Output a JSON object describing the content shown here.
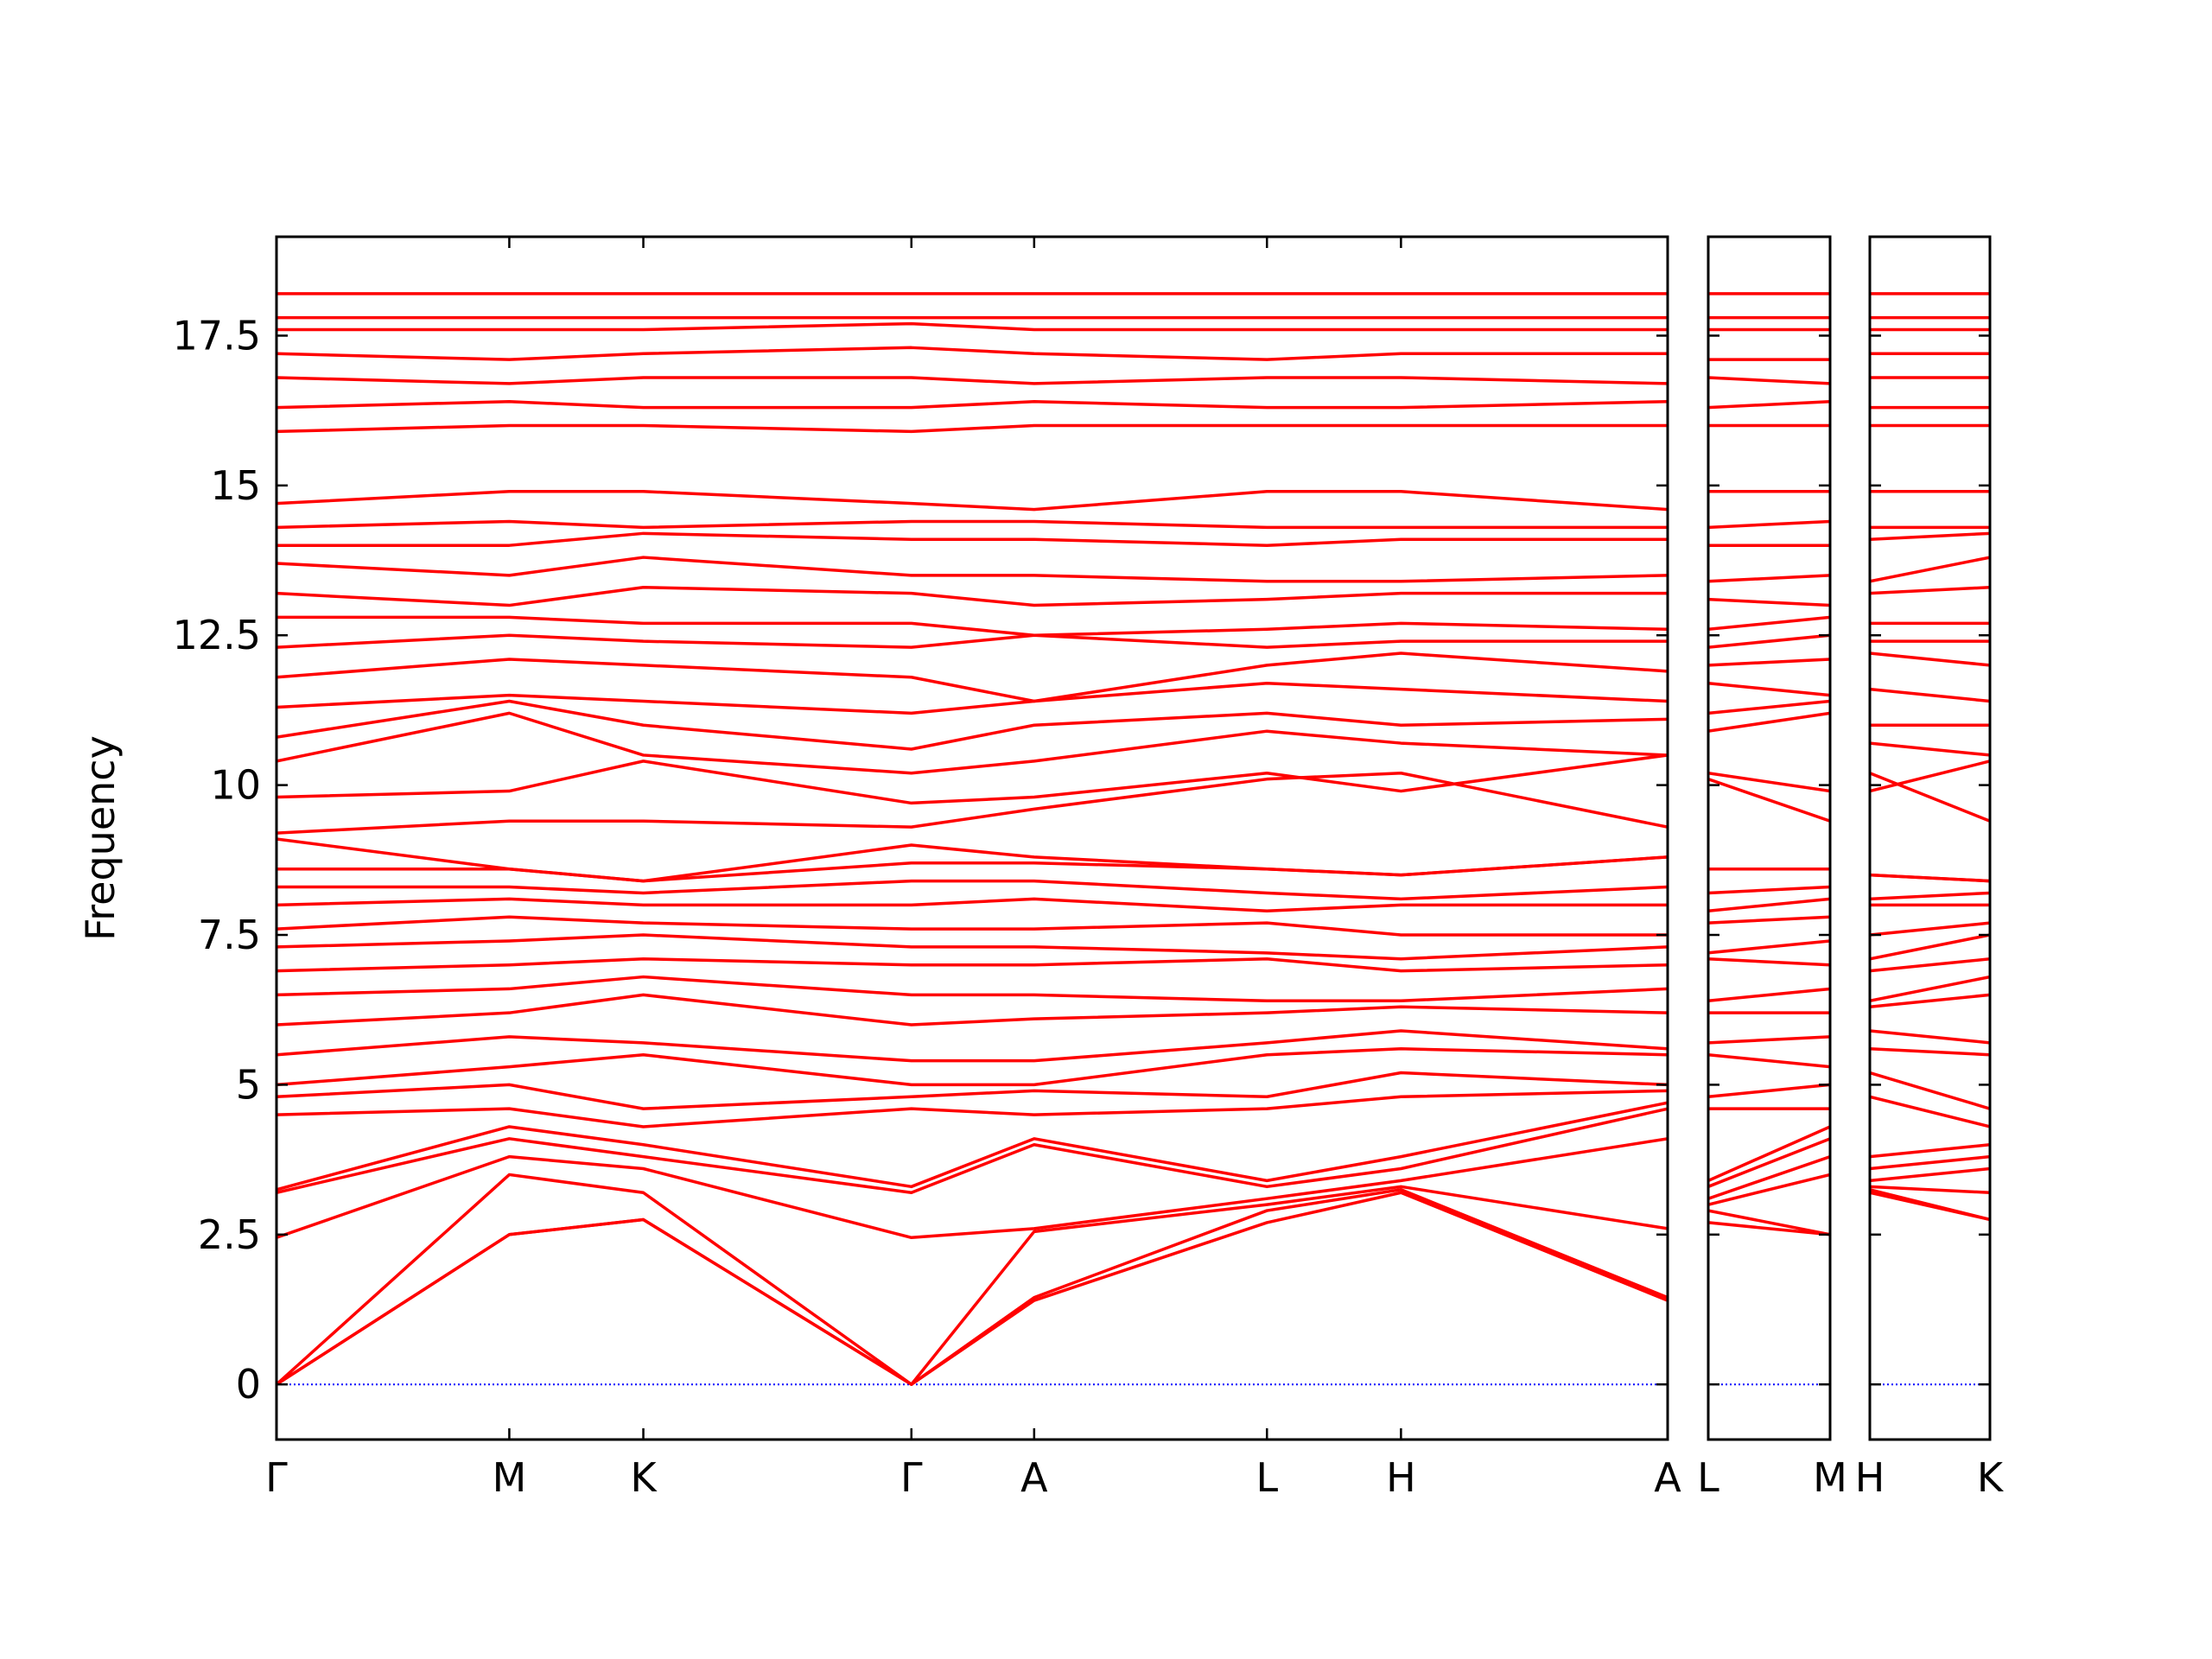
{
  "chart_data": [
    {
      "type": "line",
      "ylabel": "Frequency",
      "color": "#ff0000",
      "zero_line_color": "#0000ff",
      "ytick_labels": true,
      "x": [
        0,
        1.65,
        2.6,
        4.5,
        5.37,
        7.02,
        7.97,
        9.86
      ],
      "xlim": [
        0,
        9.86
      ],
      "xticks": [
        {
          "value": 0,
          "label": "Γ"
        },
        {
          "value": 1.65,
          "label": "M"
        },
        {
          "value": 2.6,
          "label": "K"
        },
        {
          "value": 4.5,
          "label": "Γ"
        },
        {
          "value": 5.37,
          "label": "A"
        },
        {
          "value": 7.02,
          "label": "L"
        },
        {
          "value": 7.97,
          "label": "H"
        },
        {
          "value": 9.86,
          "label": "A"
        }
      ],
      "ylim": [
        -0.92,
        19.15
      ],
      "yticks": [
        0,
        2.5,
        5,
        7.5,
        10,
        12.5,
        15,
        17.5
      ],
      "series": [
        {
          "values": [
            0,
            2.5,
            2.75,
            0,
            1.4,
            2.7,
            3.2,
            1.4
          ]
        },
        {
          "values": [
            0,
            2.5,
            2.75,
            0,
            1.45,
            2.9,
            3.25,
            1.45
          ]
        },
        {
          "values": [
            0,
            3.5,
            3.2,
            0,
            2.55,
            3.0,
            3.3,
            2.6
          ]
        },
        {
          "values": [
            2.45,
            3.8,
            3.6,
            2.45,
            2.6,
            3.1,
            3.4,
            4.1
          ]
        },
        {
          "values": [
            3.2,
            4.1,
            3.8,
            3.2,
            4.0,
            3.3,
            3.6,
            4.6
          ]
        },
        {
          "values": [
            3.25,
            4.3,
            4.0,
            3.3,
            4.1,
            3.4,
            3.8,
            4.7
          ]
        },
        {
          "values": [
            4.5,
            4.6,
            4.3,
            4.6,
            4.5,
            4.6,
            4.8,
            4.9
          ]
        },
        {
          "values": [
            4.8,
            5.0,
            4.6,
            4.8,
            4.9,
            4.8,
            5.2,
            5.0
          ]
        },
        {
          "values": [
            5.0,
            5.3,
            5.5,
            5.0,
            5.0,
            5.5,
            5.6,
            5.5
          ]
        },
        {
          "values": [
            5.5,
            5.8,
            5.7,
            5.4,
            5.4,
            5.7,
            5.9,
            5.6
          ]
        },
        {
          "values": [
            6.0,
            6.2,
            6.5,
            6.0,
            6.1,
            6.2,
            6.3,
            6.2
          ]
        },
        {
          "values": [
            6.5,
            6.6,
            6.8,
            6.5,
            6.5,
            6.4,
            6.4,
            6.6
          ]
        },
        {
          "values": [
            6.9,
            7.0,
            7.1,
            7.0,
            7.0,
            7.1,
            6.9,
            7.0
          ]
        },
        {
          "values": [
            7.3,
            7.4,
            7.5,
            7.3,
            7.3,
            7.2,
            7.1,
            7.3
          ]
        },
        {
          "values": [
            7.6,
            7.8,
            7.7,
            7.6,
            7.6,
            7.7,
            7.5,
            7.5
          ]
        },
        {
          "values": [
            8.0,
            8.1,
            8.0,
            8.0,
            8.1,
            7.9,
            8.0,
            8.0
          ]
        },
        {
          "values": [
            8.3,
            8.3,
            8.2,
            8.4,
            8.4,
            8.2,
            8.1,
            8.3
          ]
        },
        {
          "values": [
            8.6,
            8.6,
            8.4,
            8.7,
            8.7,
            8.6,
            8.5,
            8.8
          ]
        },
        {
          "values": [
            9.1,
            8.6,
            8.4,
            9.0,
            8.8,
            8.6,
            8.5,
            8.8
          ]
        },
        {
          "values": [
            9.2,
            9.4,
            9.4,
            9.3,
            9.6,
            10.1,
            10.2,
            9.3
          ]
        },
        {
          "values": [
            9.8,
            9.9,
            10.4,
            9.7,
            9.8,
            10.2,
            9.9,
            10.5
          ]
        },
        {
          "values": [
            10.4,
            11.2,
            10.5,
            10.2,
            10.4,
            10.9,
            10.7,
            10.5
          ]
        },
        {
          "values": [
            10.8,
            11.4,
            11.0,
            10.6,
            11.0,
            11.2,
            11.0,
            11.1
          ]
        },
        {
          "values": [
            11.3,
            11.5,
            11.4,
            11.2,
            11.4,
            11.7,
            11.6,
            11.4
          ]
        },
        {
          "values": [
            11.8,
            12.1,
            12.0,
            11.8,
            11.4,
            12.0,
            12.2,
            11.9
          ]
        },
        {
          "values": [
            12.3,
            12.5,
            12.4,
            12.3,
            12.5,
            12.3,
            12.4,
            12.4
          ]
        },
        {
          "values": [
            12.8,
            12.8,
            12.7,
            12.7,
            12.5,
            12.6,
            12.7,
            12.6
          ]
        },
        {
          "values": [
            13.2,
            13.0,
            13.3,
            13.2,
            13.0,
            13.1,
            13.2,
            13.2
          ]
        },
        {
          "values": [
            13.7,
            13.5,
            13.8,
            13.5,
            13.5,
            13.4,
            13.4,
            13.5
          ]
        },
        {
          "values": [
            14.0,
            14.0,
            14.2,
            14.1,
            14.1,
            14.0,
            14.1,
            14.1
          ]
        },
        {
          "values": [
            14.3,
            14.4,
            14.3,
            14.4,
            14.4,
            14.3,
            14.3,
            14.3
          ]
        },
        {
          "values": [
            14.7,
            14.9,
            14.9,
            14.7,
            14.6,
            14.9,
            14.9,
            14.6
          ]
        },
        {
          "values": [
            15.9,
            16.0,
            16.0,
            15.9,
            16.0,
            16.0,
            16.0,
            16.0
          ]
        },
        {
          "values": [
            16.3,
            16.4,
            16.3,
            16.3,
            16.4,
            16.3,
            16.3,
            16.4
          ]
        },
        {
          "values": [
            16.8,
            16.7,
            16.8,
            16.8,
            16.7,
            16.8,
            16.8,
            16.7
          ]
        },
        {
          "values": [
            17.2,
            17.1,
            17.2,
            17.3,
            17.2,
            17.1,
            17.2,
            17.2
          ]
        },
        {
          "values": [
            17.6,
            17.6,
            17.6,
            17.7,
            17.6,
            17.6,
            17.6,
            17.6
          ]
        },
        {
          "values": [
            17.8,
            17.8,
            17.8,
            17.8,
            17.8,
            17.8,
            17.8,
            17.8
          ]
        },
        {
          "values": [
            18.2,
            18.2,
            18.2,
            18.2,
            18.2,
            18.2,
            18.2,
            18.2
          ]
        }
      ]
    },
    {
      "type": "line",
      "color": "#ff0000",
      "zero_line_color": "#0000ff",
      "ytick_labels": false,
      "x": [
        0,
        0.86
      ],
      "xlim": [
        0,
        0.86
      ],
      "xticks": [
        {
          "value": 0,
          "label": "L"
        },
        {
          "value": 0.86,
          "label": "M"
        }
      ],
      "ylim": [
        -0.92,
        19.15
      ],
      "yticks": [
        0,
        2.5,
        5,
        7.5,
        10,
        12.5,
        15,
        17.5
      ],
      "series": [
        {
          "values": [
            2.7,
            2.5
          ]
        },
        {
          "values": [
            2.9,
            2.5
          ]
        },
        {
          "values": [
            3.0,
            3.5
          ]
        },
        {
          "values": [
            3.1,
            3.8
          ]
        },
        {
          "values": [
            3.3,
            4.1
          ]
        },
        {
          "values": [
            3.4,
            4.3
          ]
        },
        {
          "values": [
            4.6,
            4.6
          ]
        },
        {
          "values": [
            4.8,
            5.0
          ]
        },
        {
          "values": [
            5.5,
            5.3
          ]
        },
        {
          "values": [
            5.7,
            5.8
          ]
        },
        {
          "values": [
            6.2,
            6.2
          ]
        },
        {
          "values": [
            6.4,
            6.6
          ]
        },
        {
          "values": [
            7.1,
            7.0
          ]
        },
        {
          "values": [
            7.2,
            7.4
          ]
        },
        {
          "values": [
            7.7,
            7.8
          ]
        },
        {
          "values": [
            7.9,
            8.1
          ]
        },
        {
          "values": [
            8.2,
            8.3
          ]
        },
        {
          "values": [
            8.6,
            8.6
          ]
        },
        {
          "values": [
            8.6,
            8.6
          ]
        },
        {
          "values": [
            10.1,
            9.4
          ]
        },
        {
          "values": [
            10.2,
            9.9
          ]
        },
        {
          "values": [
            10.9,
            11.2
          ]
        },
        {
          "values": [
            11.2,
            11.4
          ]
        },
        {
          "values": [
            11.7,
            11.5
          ]
        },
        {
          "values": [
            12.0,
            12.1
          ]
        },
        {
          "values": [
            12.3,
            12.5
          ]
        },
        {
          "values": [
            12.6,
            12.8
          ]
        },
        {
          "values": [
            13.1,
            13.0
          ]
        },
        {
          "values": [
            13.4,
            13.5
          ]
        },
        {
          "values": [
            14.0,
            14.0
          ]
        },
        {
          "values": [
            14.3,
            14.4
          ]
        },
        {
          "values": [
            14.9,
            14.9
          ]
        },
        {
          "values": [
            16.0,
            16.0
          ]
        },
        {
          "values": [
            16.3,
            16.4
          ]
        },
        {
          "values": [
            16.8,
            16.7
          ]
        },
        {
          "values": [
            17.1,
            17.1
          ]
        },
        {
          "values": [
            17.6,
            17.6
          ]
        },
        {
          "values": [
            17.8,
            17.8
          ]
        },
        {
          "values": [
            18.2,
            18.2
          ]
        }
      ]
    },
    {
      "type": "line",
      "color": "#ff0000",
      "zero_line_color": "#0000ff",
      "ytick_labels": false,
      "x": [
        0,
        0.85
      ],
      "xlim": [
        0,
        0.85
      ],
      "xticks": [
        {
          "value": 0,
          "label": "H"
        },
        {
          "value": 0.85,
          "label": "K"
        }
      ],
      "ylim": [
        -0.92,
        19.15
      ],
      "yticks": [
        0,
        2.5,
        5,
        7.5,
        10,
        12.5,
        15,
        17.5
      ],
      "series": [
        {
          "values": [
            3.2,
            2.75
          ]
        },
        {
          "values": [
            3.25,
            2.75
          ]
        },
        {
          "values": [
            3.3,
            3.2
          ]
        },
        {
          "values": [
            3.4,
            3.6
          ]
        },
        {
          "values": [
            3.6,
            3.8
          ]
        },
        {
          "values": [
            3.8,
            4.0
          ]
        },
        {
          "values": [
            4.8,
            4.3
          ]
        },
        {
          "values": [
            5.2,
            4.6
          ]
        },
        {
          "values": [
            5.6,
            5.5
          ]
        },
        {
          "values": [
            5.9,
            5.7
          ]
        },
        {
          "values": [
            6.3,
            6.5
          ]
        },
        {
          "values": [
            6.4,
            6.8
          ]
        },
        {
          "values": [
            6.9,
            7.1
          ]
        },
        {
          "values": [
            7.1,
            7.5
          ]
        },
        {
          "values": [
            7.5,
            7.7
          ]
        },
        {
          "values": [
            8.0,
            8.0
          ]
        },
        {
          "values": [
            8.1,
            8.2
          ]
        },
        {
          "values": [
            8.5,
            8.4
          ]
        },
        {
          "values": [
            8.5,
            8.4
          ]
        },
        {
          "values": [
            10.2,
            9.4
          ]
        },
        {
          "values": [
            9.9,
            10.4
          ]
        },
        {
          "values": [
            10.7,
            10.5
          ]
        },
        {
          "values": [
            11.0,
            11.0
          ]
        },
        {
          "values": [
            11.6,
            11.4
          ]
        },
        {
          "values": [
            12.2,
            12.0
          ]
        },
        {
          "values": [
            12.4,
            12.4
          ]
        },
        {
          "values": [
            12.7,
            12.7
          ]
        },
        {
          "values": [
            13.2,
            13.3
          ]
        },
        {
          "values": [
            13.4,
            13.8
          ]
        },
        {
          "values": [
            14.1,
            14.2
          ]
        },
        {
          "values": [
            14.3,
            14.3
          ]
        },
        {
          "values": [
            14.9,
            14.9
          ]
        },
        {
          "values": [
            16.0,
            16.0
          ]
        },
        {
          "values": [
            16.3,
            16.3
          ]
        },
        {
          "values": [
            16.8,
            16.8
          ]
        },
        {
          "values": [
            17.2,
            17.2
          ]
        },
        {
          "values": [
            17.6,
            17.6
          ]
        },
        {
          "values": [
            17.8,
            17.8
          ]
        },
        {
          "values": [
            18.2,
            18.2
          ]
        }
      ]
    }
  ]
}
